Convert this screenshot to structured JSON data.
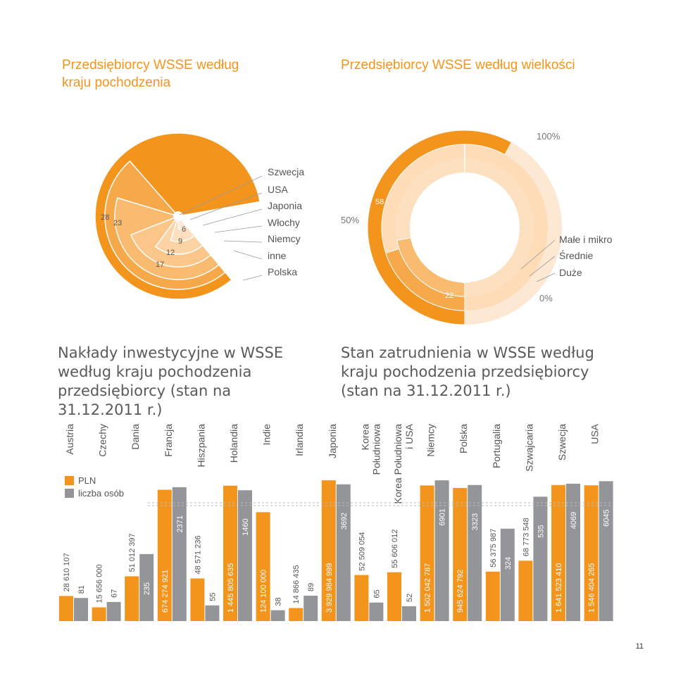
{
  "page": {
    "title_origin": "Przedsiębiorcy WSSE według kraju pochodzenia",
    "title_size": "Przedsiębiorcy WSSE według wielkości",
    "title_investment": "Nakłady inwestycyjne w WSSE według kraju pochodzenia przedsiębiorcy (stan na 31.12.2011 r.)",
    "title_employment": "Stan zatrudnienia w WSSE według kraju pochodzenia przedsiębiorcy (stan na 31.12.2011 r.)",
    "page_number": "11"
  },
  "colors": {
    "orange": "#f3941d",
    "grey": "#939598",
    "ring_light": "#fbd9b4",
    "ring_pale": "#fde9d3",
    "text": "#555555"
  },
  "chart_data": [
    {
      "type": "radial-bar",
      "title": "Przedsiębiorcy WSSE według kraju pochodzenia",
      "series": [
        {
          "name": "Polska",
          "value": 47
        },
        {
          "name": "inne",
          "value": 28
        },
        {
          "name": "Niemcy",
          "value": 23
        },
        {
          "name": "Włochy",
          "value": 17
        },
        {
          "name": "Japonia",
          "value": 12
        },
        {
          "name": "USA",
          "value": 9
        },
        {
          "name": "Szwecja",
          "value": 6
        }
      ],
      "legend": [
        "Szwecja",
        "USA",
        "Japonia",
        "Włochy",
        "Niemcy",
        "inne",
        "Polska"
      ]
    },
    {
      "type": "radial-bar",
      "title": "Przedsiębiorcy WSSE według wielkości",
      "axis_labels": [
        "100%",
        "50%",
        "0%"
      ],
      "series": [
        {
          "name": "Małe i mikro",
          "value": 58
        },
        {
          "name": "Średnie",
          "value": 20
        },
        {
          "name": "Duże",
          "value": 22
        }
      ],
      "legend": [
        "Małe i mikro",
        "Średnie",
        "Duże"
      ]
    },
    {
      "type": "bar",
      "title": "Nakłady inwestycyjne / Stan zatrudnienia według kraju pochodzenia przedsiębiorcy",
      "legend": [
        "PLN",
        "liczba osób"
      ],
      "axis_break": true,
      "categories": [
        "Austria",
        "Czechy",
        "Dania",
        "Francja",
        "Hiszpania",
        "Holandia",
        "Indie",
        "Irlandia",
        "Japonia",
        "Korea Południowa",
        "Korea Południowa i USA",
        "Niemcy",
        "Polska",
        "Portugalia",
        "Szwajcaria",
        "Szwecja",
        "USA"
      ],
      "series": [
        {
          "name": "PLN",
          "values": [
            28610107,
            15656000,
            51012397,
            674274921,
            48571236,
            1445805635,
            124100000,
            14866435,
            3929984999,
            52509054,
            55606012,
            1502042787,
            945624792,
            56375987,
            68773548,
            1641523410,
            1546404265
          ],
          "labels": [
            "28 610 107",
            "15 656 000",
            "51 012 397",
            "674 274 921",
            "48 571 236",
            "1 445 805 635",
            "124 100 000",
            "14 866 435",
            "3 929 984 999",
            "52 509 054",
            "55 606 012",
            "1 502 042 787",
            "945 624 792",
            "56 375 987",
            "68 773 548",
            "1 641 523 410",
            "1 546 404 265"
          ]
        },
        {
          "name": "liczba osób",
          "values": [
            81,
            67,
            235,
            2371,
            55,
            1460,
            38,
            89,
            3692,
            65,
            52,
            6901,
            3323,
            324,
            535,
            4069,
            6045
          ],
          "labels": [
            "81",
            "67",
            "235",
            "2371",
            "55",
            "1460",
            "38",
            "89",
            "3692",
            "65",
            "52",
            "6901",
            "3323",
            "324",
            "535",
            "4069",
            "6045"
          ]
        }
      ],
      "category_labels": [
        "Austria",
        "Czechy",
        "Dania",
        "Francja",
        "Hiszpania",
        "Holandia",
        "Indie",
        "Irlandia",
        "Japonia",
        "Korea\nPołudniowa",
        "Korea Południowa\ni USA",
        "Niemcy",
        "Polska",
        "Portugalia",
        "Szwajcaria",
        "Szwecja",
        "USA"
      ]
    }
  ]
}
